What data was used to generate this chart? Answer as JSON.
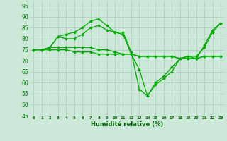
{
  "xlabel": "Humidité relative (%)",
  "bg_color": "#cce8d8",
  "grid_color": "#aaccbb",
  "line_color": "#00aa00",
  "xlim": [
    -0.5,
    23.5
  ],
  "ylim": [
    45,
    97
  ],
  "yticks": [
    45,
    50,
    55,
    60,
    65,
    70,
    75,
    80,
    85,
    90,
    95
  ],
  "xticks": [
    0,
    1,
    2,
    3,
    4,
    5,
    6,
    7,
    8,
    9,
    10,
    11,
    12,
    13,
    14,
    15,
    16,
    17,
    18,
    19,
    20,
    21,
    22,
    23
  ],
  "series": [
    [
      75,
      75,
      76,
      81,
      82,
      83,
      85,
      88,
      89,
      86,
      83,
      83,
      74,
      57,
      54,
      59,
      62,
      65,
      71,
      72,
      71,
      77,
      84,
      87
    ],
    [
      75,
      75,
      76,
      81,
      80,
      80,
      82,
      85,
      86,
      84,
      83,
      82,
      73,
      66,
      54,
      60,
      63,
      67,
      71,
      72,
      72,
      76,
      83,
      87
    ],
    [
      75,
      75,
      76,
      76,
      76,
      76,
      76,
      76,
      75,
      75,
      74,
      73,
      73,
      72,
      72,
      72,
      72,
      72,
      71,
      71,
      71,
      72,
      72,
      72
    ],
    [
      75,
      75,
      75,
      75,
      75,
      74,
      74,
      74,
      73,
      73,
      73,
      73,
      73,
      72,
      72,
      72,
      72,
      72,
      71,
      71,
      71,
      72,
      72,
      72
    ]
  ]
}
